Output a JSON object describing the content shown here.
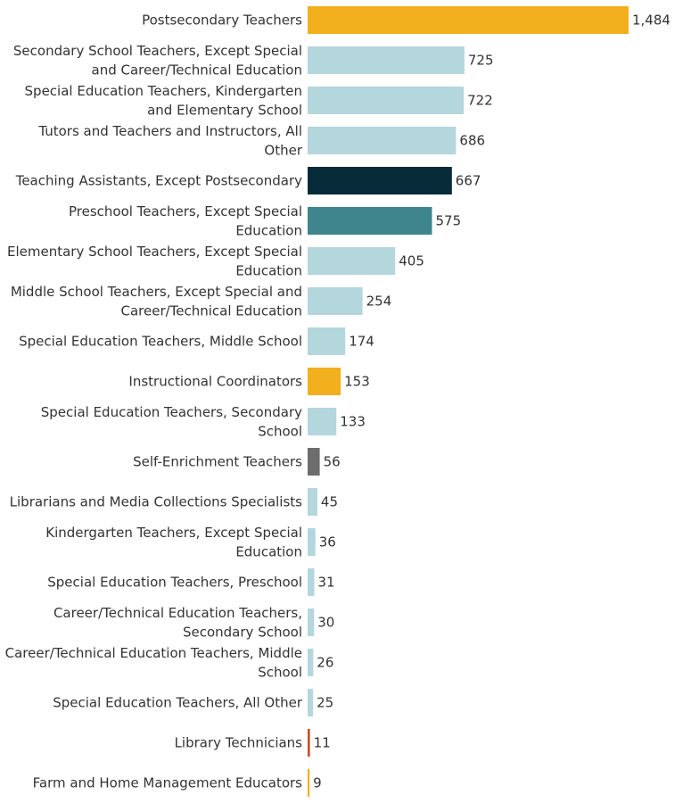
{
  "chart_data": {
    "type": "bar",
    "orientation": "horizontal",
    "title": "",
    "xlabel": "",
    "ylabel": "",
    "xlim": [
      0,
      1484
    ],
    "grid": false,
    "legend": "none",
    "value_labels": [
      "1,484",
      "725",
      "722",
      "686",
      "667",
      "575",
      "405",
      "254",
      "174",
      "153",
      "133",
      "56",
      "45",
      "36",
      "31",
      "30",
      "26",
      "25",
      "11",
      "9"
    ],
    "categories": [
      [
        "Postsecondary Teachers"
      ],
      [
        "Secondary School Teachers, Except Special",
        "and Career/Technical Education"
      ],
      [
        "Special Education Teachers, Kindergarten",
        "and Elementary School"
      ],
      [
        "Tutors and Teachers and Instructors, All",
        "Other"
      ],
      [
        "Teaching Assistants, Except Postsecondary"
      ],
      [
        "Preschool Teachers, Except Special",
        "Education"
      ],
      [
        "Elementary School Teachers, Except Special",
        "Education"
      ],
      [
        "Middle School Teachers, Except Special and",
        "Career/Technical Education"
      ],
      [
        "Special Education Teachers, Middle School"
      ],
      [
        "Instructional Coordinators"
      ],
      [
        "Special Education Teachers, Secondary",
        "School"
      ],
      [
        "Self-Enrichment Teachers"
      ],
      [
        "Librarians and Media Collections Specialists"
      ],
      [
        "Kindergarten Teachers, Except Special",
        "Education"
      ],
      [
        "Special Education Teachers, Preschool"
      ],
      [
        "Career/Technical Education Teachers,",
        "Secondary School"
      ],
      [
        "Career/Technical Education Teachers, Middle",
        "School"
      ],
      [
        "Special Education Teachers, All Other"
      ],
      [
        "Library Technicians"
      ],
      [
        "Farm and Home Management Educators"
      ]
    ],
    "values": [
      1484,
      725,
      722,
      686,
      667,
      575,
      405,
      254,
      174,
      153,
      133,
      56,
      45,
      36,
      31,
      30,
      26,
      25,
      11,
      9
    ],
    "colors": [
      "#f2af1e",
      "#b4d6dd",
      "#b4d6dd",
      "#b4d6dd",
      "#062a37",
      "#3f858d",
      "#b4d6dd",
      "#b4d6dd",
      "#b4d6dd",
      "#f2af1e",
      "#b4d6dd",
      "#6d6d6d",
      "#b4d6dd",
      "#b4d6dd",
      "#b4d6dd",
      "#b4d6dd",
      "#b4d6dd",
      "#b4d6dd",
      "#c8522a",
      "#f2af1e"
    ]
  }
}
